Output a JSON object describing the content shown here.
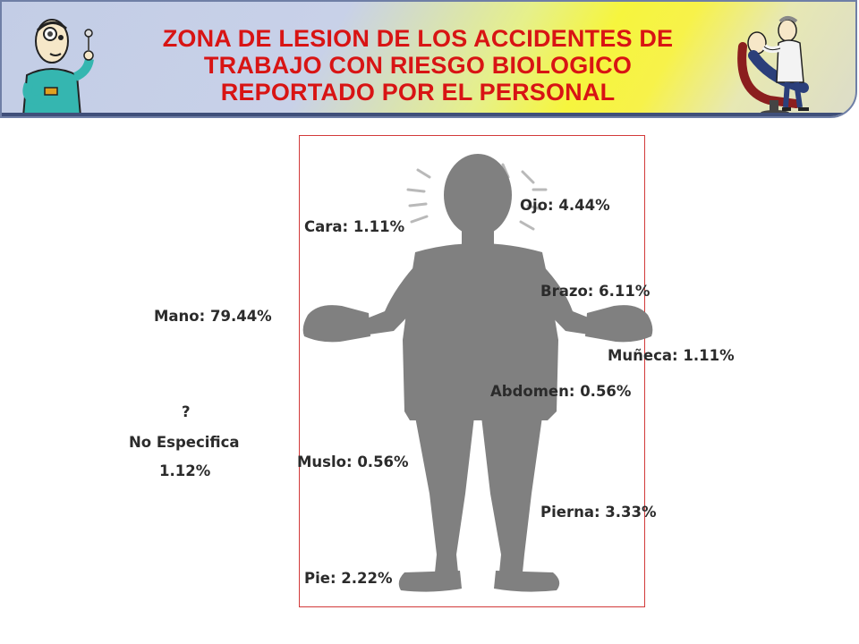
{
  "header": {
    "title_lines": [
      "ZONA DE LESION DE LOS ACCIDENTES DE",
      "TRABAJO CON RIESGO BIOLOGICO",
      "REPORTADO POR EL PERSONAL"
    ],
    "icons": [
      "dentist-with-mirror-icon",
      "dentist-treating-patient-icon"
    ]
  },
  "zones": {
    "ojo": "Ojo: 4.44%",
    "cara": "Cara: 1.11%",
    "brazo": "Brazo: 6.11%",
    "mano": "Mano: 79.44%",
    "muneca": "Muñeca: 1.11%",
    "abdomen": "Abdomen: 0.56%",
    "muslo": "Muslo: 0.56%",
    "pierna": "Pierna: 3.33%",
    "pie": "Pie: 2.22%",
    "no_especifica": {
      "mark": "?",
      "label": "No Especifica",
      "value": "1.12%"
    }
  },
  "colors": {
    "title": "#d81414",
    "silhouette": "#808080",
    "frame": "#d23a3a"
  }
}
